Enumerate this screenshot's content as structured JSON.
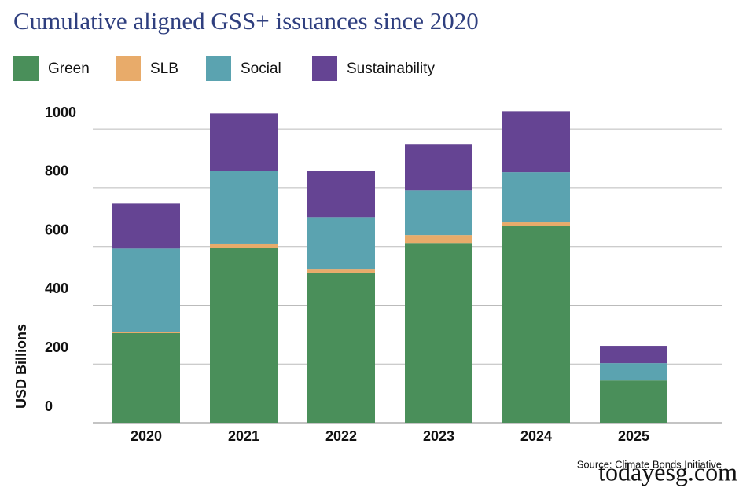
{
  "chart_data": {
    "type": "stacked_bar",
    "title": "Cumulative aligned GSS+ issuances since 2020",
    "y_label": "USD Billions",
    "source": "Source: Climate Bonds Initiative",
    "watermark": "todayesg.com",
    "categories": [
      "2020",
      "2021",
      "2022",
      "2023",
      "2024",
      "2025"
    ],
    "series": [
      {
        "name": "Green",
        "color": "#4a8f5a",
        "values": [
          305,
          596,
          511,
          612,
          671,
          144
        ]
      },
      {
        "name": "SLB",
        "color": "#e8ab6a",
        "values": [
          5,
          14,
          13,
          27,
          11,
          0
        ]
      },
      {
        "name": "Social",
        "color": "#5ba3b0",
        "values": [
          283,
          248,
          176,
          152,
          171,
          59
        ]
      },
      {
        "name": "Sustainability",
        "color": "#654493",
        "values": [
          155,
          195,
          156,
          158,
          208,
          59
        ]
      }
    ],
    "ylim": [
      0,
      1070
    ],
    "yticks": [
      0,
      200,
      400,
      600,
      800,
      1000
    ],
    "grid": true,
    "legend": "top"
  }
}
